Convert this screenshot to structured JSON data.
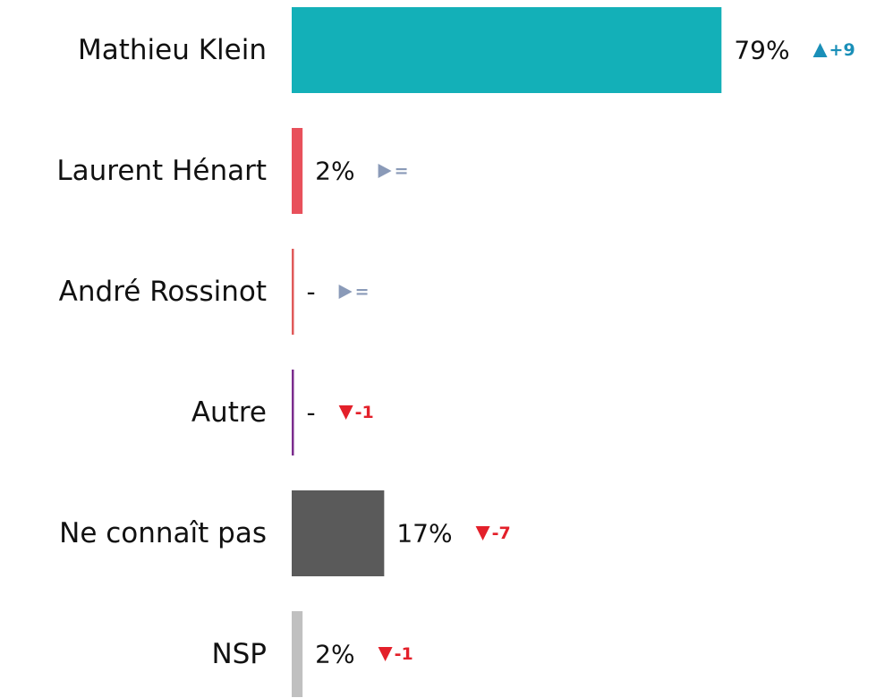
{
  "chart_data": {
    "type": "bar",
    "orientation": "horizontal",
    "categories": [
      "Mathieu Klein",
      "Laurent Hénart",
      "André Rossinot",
      "Autre",
      "Ne connaît pas",
      "NSP"
    ],
    "values": [
      79,
      2,
      0,
      0,
      17,
      2
    ],
    "value_labels": [
      "79%",
      "2%",
      "-",
      "-",
      "17%",
      "2%"
    ],
    "colors": [
      "#13b0b8",
      "#e8505b",
      "#e05a5a",
      "#7b2d8e",
      "#5a5a5a",
      "#c0c0c0"
    ],
    "changes": [
      9,
      0,
      0,
      -1,
      -7,
      -1
    ],
    "change_labels": [
      "+9",
      "=",
      "=",
      "-1",
      "-7",
      "-1"
    ],
    "change_colors": {
      "up": "#1a8fb8",
      "flat": "#8a9ab8",
      "down": "#e3202a"
    }
  }
}
